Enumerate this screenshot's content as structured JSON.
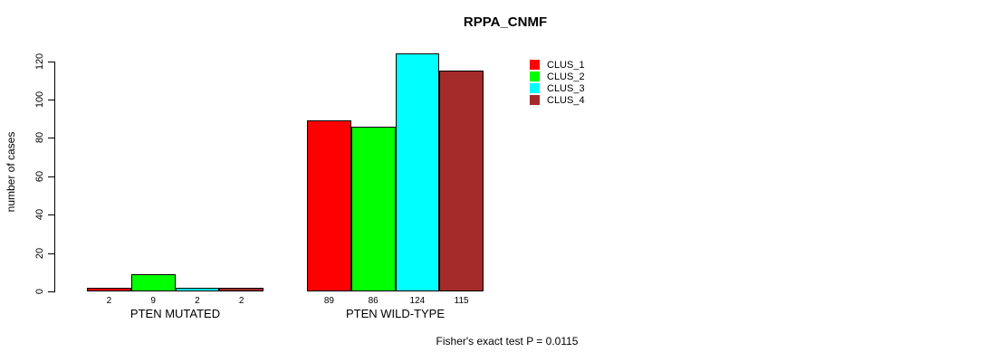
{
  "chart_data": {
    "type": "bar",
    "title": "RPPA_CNMF",
    "xlabel": "",
    "ylabel": "number of cases",
    "categories": [
      "PTEN MUTATED",
      "PTEN WILD-TYPE"
    ],
    "series": [
      {
        "name": "CLUS_1",
        "color": "#FF0000",
        "values": [
          2,
          89
        ]
      },
      {
        "name": "CLUS_2",
        "color": "#00FF00",
        "values": [
          9,
          86
        ]
      },
      {
        "name": "CLUS_3",
        "color": "#00FFFF",
        "values": [
          2,
          124
        ]
      },
      {
        "name": "CLUS_4",
        "color": "#A52A2A",
        "values": [
          2,
          115
        ]
      }
    ],
    "yticks": [
      0,
      20,
      40,
      60,
      80,
      100,
      120
    ],
    "ylim": [
      0,
      124
    ],
    "grid": false,
    "legend_position": "top-right",
    "bar_border_color": "#000000",
    "value_labels_shown": true
  },
  "footer": {
    "caption": "Fisher's exact test P = 0.0115"
  }
}
